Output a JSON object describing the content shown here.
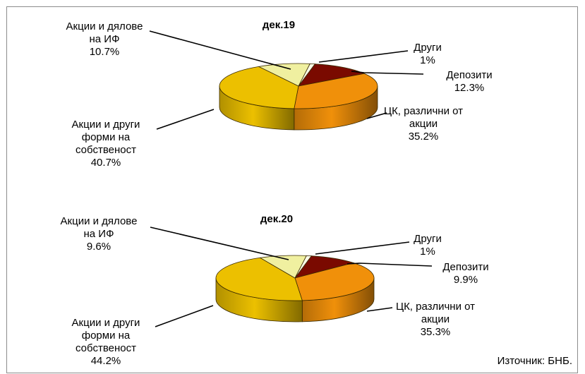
{
  "source": "Източник: БНБ.",
  "colors": {
    "deposits": "#7a0a00",
    "debt_securities": "#f0900a",
    "equity": "#ecc000",
    "investment_fund_shares": "#f0f0a0",
    "other": "#fbfbe8"
  },
  "chart_data": [
    {
      "type": "pie",
      "title": "дек.19",
      "categories": [
        "Депозити",
        "ЦК, различни от акции",
        "Акции и други форми на собственост",
        "Акции и дялове на ИФ",
        "Други"
      ],
      "values": [
        12.3,
        35.2,
        40.7,
        10.7,
        1
      ],
      "labels": [
        {
          "lines": [
            "Депозити",
            "12.3%"
          ]
        },
        {
          "lines": [
            "ЦК, различни от",
            "акции",
            "35.2%"
          ]
        },
        {
          "lines": [
            "Акции и други",
            "форми на",
            "собственост",
            "40.7%"
          ]
        },
        {
          "lines": [
            "Акции и дялове",
            "на ИФ",
            "10.7%"
          ]
        },
        {
          "lines": [
            "Други",
            "1%"
          ]
        }
      ]
    },
    {
      "type": "pie",
      "title": "дек.20",
      "categories": [
        "Депозити",
        "ЦК, различни от акции",
        "Акции и други форми на собственост",
        "Акции и дялове на ИФ",
        "Други"
      ],
      "values": [
        9.9,
        35.3,
        44.2,
        9.6,
        1
      ],
      "labels": [
        {
          "lines": [
            "Депозити",
            "9.9%"
          ]
        },
        {
          "lines": [
            "ЦК, различни от",
            "акции",
            "35.3%"
          ]
        },
        {
          "lines": [
            "Акции и други",
            "форми на",
            "собственост",
            "44.2%"
          ]
        },
        {
          "lines": [
            "Акции и дялове",
            "на ИФ",
            "9.6%"
          ]
        },
        {
          "lines": [
            "Други",
            "1%"
          ]
        }
      ]
    }
  ]
}
